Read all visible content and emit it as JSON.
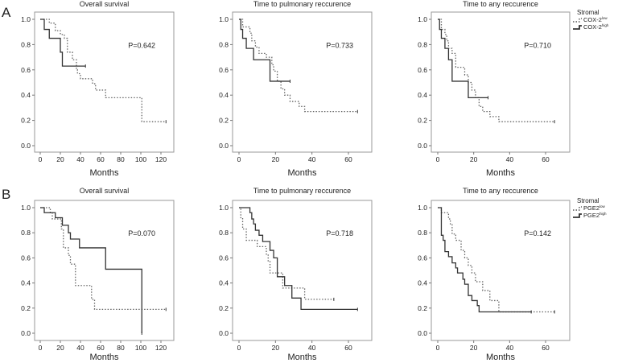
{
  "panel_labels": [
    "A",
    "B"
  ],
  "chart_data": [
    {
      "type": "line",
      "row": 0,
      "col": 0,
      "title": "Overall survival",
      "xlabel": "Months",
      "ylabel": "",
      "xlim": [
        0,
        125
      ],
      "xticks": [
        0,
        20,
        40,
        60,
        80,
        100,
        120
      ],
      "ylim": [
        0,
        1
      ],
      "yticks": [
        "0.0",
        "0.2",
        "0.4",
        "0.6",
        "0.8",
        "1.0"
      ],
      "p_value": "P=0.642",
      "series": [
        {
          "name": "COX-2 low",
          "style": "dotted",
          "steps": [
            [
              9,
              0.97
            ],
            [
              15,
              0.91
            ],
            [
              20,
              0.88
            ],
            [
              24,
              0.85
            ],
            [
              27,
              0.74
            ],
            [
              32,
              0.68
            ],
            [
              36,
              0.6
            ],
            [
              37,
              0.57
            ],
            [
              40,
              0.53
            ],
            [
              52,
              0.49
            ],
            [
              55,
              0.44
            ],
            [
              65,
              0.38
            ],
            [
              101,
              0.19
            ]
          ],
          "end": 125
        },
        {
          "name": "COX-2 high",
          "style": "solid",
          "steps": [
            [
              4,
              0.92
            ],
            [
              9,
              0.85
            ],
            [
              20,
              0.74
            ],
            [
              22,
              0.63
            ]
          ],
          "end": 45
        }
      ]
    },
    {
      "type": "line",
      "row": 0,
      "col": 1,
      "title": "Time to pulmonary reccurence",
      "xlabel": "Months",
      "ylabel": "",
      "xlim": [
        0,
        65
      ],
      "xticks": [
        0,
        20,
        40,
        60
      ],
      "ylim": [
        0,
        1
      ],
      "yticks": [
        "0.0",
        "0.2",
        "0.4",
        "0.6",
        "0.8",
        "1.0"
      ],
      "p_value": "P=0.733",
      "series": [
        {
          "name": "COX-2 low",
          "style": "dotted",
          "steps": [
            [
              2,
              0.94
            ],
            [
              6,
              0.89
            ],
            [
              7,
              0.83
            ],
            [
              9,
              0.78
            ],
            [
              11,
              0.73
            ],
            [
              15,
              0.7
            ],
            [
              18,
              0.64
            ],
            [
              19,
              0.59
            ],
            [
              21,
              0.51
            ],
            [
              23,
              0.45
            ],
            [
              25,
              0.4
            ],
            [
              28,
              0.35
            ],
            [
              33,
              0.31
            ],
            [
              36,
              0.27
            ]
          ],
          "end": 65
        },
        {
          "name": "COX-2 high",
          "style": "solid",
          "steps": [
            [
              1,
              0.92
            ],
            [
              2,
              0.85
            ],
            [
              4,
              0.77
            ],
            [
              8,
              0.68
            ],
            [
              17,
              0.51
            ]
          ],
          "end": 28
        }
      ]
    },
    {
      "type": "line",
      "row": 0,
      "col": 2,
      "title": "Time to any reccurence",
      "xlabel": "Months",
      "ylabel": "",
      "xlim": [
        0,
        65
      ],
      "xticks": [
        0,
        20,
        40,
        60
      ],
      "ylim": [
        0,
        1
      ],
      "yticks": [
        "0.0",
        "0.2",
        "0.4",
        "0.6",
        "0.8",
        "1.0"
      ],
      "p_value": "P=0.710",
      "series": [
        {
          "name": "COX-2 low",
          "style": "dotted",
          "steps": [
            [
              2,
              0.92
            ],
            [
              4,
              0.88
            ],
            [
              5,
              0.83
            ],
            [
              6,
              0.77
            ],
            [
              8,
              0.73
            ],
            [
              10,
              0.62
            ],
            [
              15,
              0.56
            ],
            [
              17,
              0.5
            ],
            [
              19,
              0.44
            ],
            [
              21,
              0.38
            ],
            [
              23,
              0.31
            ],
            [
              25,
              0.27
            ],
            [
              29,
              0.23
            ],
            [
              34,
              0.19
            ]
          ],
          "end": 65
        },
        {
          "name": "COX-2 high",
          "style": "solid",
          "steps": [
            [
              1,
              0.92
            ],
            [
              2,
              0.85
            ],
            [
              4,
              0.77
            ],
            [
              6,
              0.68
            ],
            [
              8,
              0.51
            ],
            [
              17,
              0.38
            ]
          ],
          "end": 28
        }
      ]
    },
    {
      "type": "line",
      "row": 1,
      "col": 0,
      "title": "Overall survival",
      "xlabel": "Months",
      "ylabel": "",
      "xlim": [
        0,
        125
      ],
      "xticks": [
        0,
        20,
        40,
        60,
        80,
        100,
        120
      ],
      "ylim": [
        0,
        1
      ],
      "yticks": [
        "0.0",
        "0.2",
        "0.4",
        "0.6",
        "0.8",
        "1.0"
      ],
      "p_value": "P=0.070",
      "series": [
        {
          "name": "PGE2 low",
          "style": "dotted",
          "steps": [
            [
              10,
              0.96
            ],
            [
              12,
              0.91
            ],
            [
              21,
              0.83
            ],
            [
              23,
              0.68
            ],
            [
              28,
              0.62
            ],
            [
              30,
              0.55
            ],
            [
              35,
              0.38
            ],
            [
              51,
              0.27
            ],
            [
              54,
              0.19
            ]
          ],
          "end": 125
        },
        {
          "name": "PGE2 high",
          "style": "solid",
          "steps": [
            [
              4,
              0.96
            ],
            [
              15,
              0.92
            ],
            [
              22,
              0.86
            ],
            [
              28,
              0.8
            ],
            [
              30,
              0.75
            ],
            [
              39,
              0.68
            ],
            [
              65,
              0.51
            ],
            [
              101,
              0.0
            ]
          ],
          "end": 101
        }
      ]
    },
    {
      "type": "line",
      "row": 1,
      "col": 1,
      "title": "Time to pulmonary reccurence",
      "xlabel": "Months",
      "ylabel": "",
      "xlim": [
        0,
        65
      ],
      "xticks": [
        0,
        20,
        40,
        60
      ],
      "ylim": [
        0,
        1
      ],
      "yticks": [
        "0.0",
        "0.2",
        "0.4",
        "0.6",
        "0.8",
        "1.0"
      ],
      "p_value": "P=0.718",
      "series": [
        {
          "name": "PGE2 low",
          "style": "dotted",
          "steps": [
            [
              1,
              0.92
            ],
            [
              2,
              0.83
            ],
            [
              4,
              0.74
            ],
            [
              10,
              0.69
            ],
            [
              15,
              0.63
            ],
            [
              16,
              0.57
            ],
            [
              17,
              0.48
            ],
            [
              24,
              0.36
            ],
            [
              36,
              0.27
            ]
          ],
          "end": 52
        },
        {
          "name": "PGE2 high",
          "style": "solid",
          "steps": [
            [
              6,
              0.96
            ],
            [
              7,
              0.91
            ],
            [
              8,
              0.87
            ],
            [
              9,
              0.82
            ],
            [
              11,
              0.78
            ],
            [
              13,
              0.73
            ],
            [
              17,
              0.66
            ],
            [
              19,
              0.6
            ],
            [
              21,
              0.45
            ],
            [
              25,
              0.38
            ],
            [
              29,
              0.28
            ],
            [
              34,
              0.19
            ]
          ],
          "end": 65
        }
      ]
    },
    {
      "type": "line",
      "row": 1,
      "col": 2,
      "title": "Time to any reccurence",
      "xlabel": "Months",
      "ylabel": "",
      "xlim": [
        0,
        65
      ],
      "xticks": [
        0,
        20,
        40,
        60
      ],
      "ylim": [
        0,
        1
      ],
      "yticks": [
        "0.0",
        "0.2",
        "0.4",
        "0.6",
        "0.8",
        "1.0"
      ],
      "p_value": "P=0.142",
      "series": [
        {
          "name": "PGE2 low",
          "style": "dotted",
          "steps": [
            [
              2,
              0.96
            ],
            [
              6,
              0.91
            ],
            [
              7,
              0.87
            ],
            [
              8,
              0.79
            ],
            [
              10,
              0.74
            ],
            [
              13,
              0.66
            ],
            [
              15,
              0.6
            ],
            [
              17,
              0.54
            ],
            [
              19,
              0.48
            ],
            [
              21,
              0.41
            ],
            [
              25,
              0.34
            ],
            [
              29,
              0.26
            ],
            [
              34,
              0.17
            ]
          ],
          "end": 65
        },
        {
          "name": "PGE2 high",
          "style": "solid",
          "steps": [
            [
              2,
              0.78
            ],
            [
              3,
              0.74
            ],
            [
              4,
              0.65
            ],
            [
              6,
              0.61
            ],
            [
              8,
              0.56
            ],
            [
              10,
              0.52
            ],
            [
              11,
              0.48
            ],
            [
              14,
              0.43
            ],
            [
              15,
              0.39
            ],
            [
              17,
              0.3
            ],
            [
              19,
              0.26
            ],
            [
              22,
              0.22
            ],
            [
              23,
              0.17
            ]
          ],
          "end": 52
        }
      ]
    }
  ],
  "legends": [
    {
      "title": "Stromal",
      "items": [
        {
          "base": "COX-2",
          "sup": "low",
          "style": "dotted"
        },
        {
          "base": "COX-2",
          "sup": "high",
          "style": "solid"
        }
      ]
    },
    {
      "title": "Stromal",
      "items": [
        {
          "base": "PGE2",
          "sup": "low",
          "style": "dotted"
        },
        {
          "base": "PGE2",
          "sup": "high",
          "style": "solid"
        }
      ]
    }
  ]
}
